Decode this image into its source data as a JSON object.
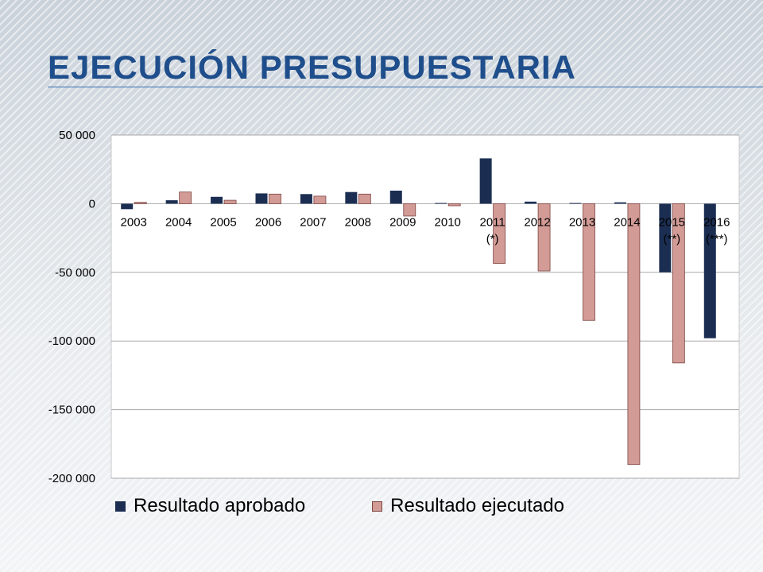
{
  "slide": {
    "title": "Ejecución Presupuestaria"
  },
  "colors": {
    "aprobado": "#1b2e52",
    "ejecutado": "#d39b96",
    "ejecutado_border": "#7a4440",
    "title": "#1f4e8c"
  },
  "chart_data": {
    "type": "bar",
    "categories": [
      "2003",
      "2004",
      "2005",
      "2006",
      "2007",
      "2008",
      "2009",
      "2010",
      "2011\n(*)",
      "2012",
      "2013",
      "2014",
      "2015\n(**)",
      "2016\n(***)"
    ],
    "series": [
      {
        "name": "Resultado aprobado",
        "values": [
          -4000,
          2500,
          5000,
          7500,
          7000,
          8500,
          9500,
          500,
          33000,
          1500,
          500,
          1000,
          -50000,
          -98000
        ]
      },
      {
        "name": "Resultado ejecutado",
        "values": [
          1000,
          8500,
          2500,
          7000,
          5500,
          7000,
          -9000,
          -1500,
          -43500,
          -49000,
          -85000,
          -190000,
          -116000,
          null
        ]
      }
    ],
    "ylim": [
      -200000,
      50000
    ],
    "yticks": [
      50000,
      0,
      -50000,
      -100000,
      -150000,
      -200000
    ],
    "ytick_labels": [
      "50 000",
      "0",
      "-50 000",
      "-100 000",
      "-150 000",
      "-200 000"
    ],
    "grid": true,
    "legend": "bottom",
    "xlabel": "",
    "ylabel": ""
  }
}
